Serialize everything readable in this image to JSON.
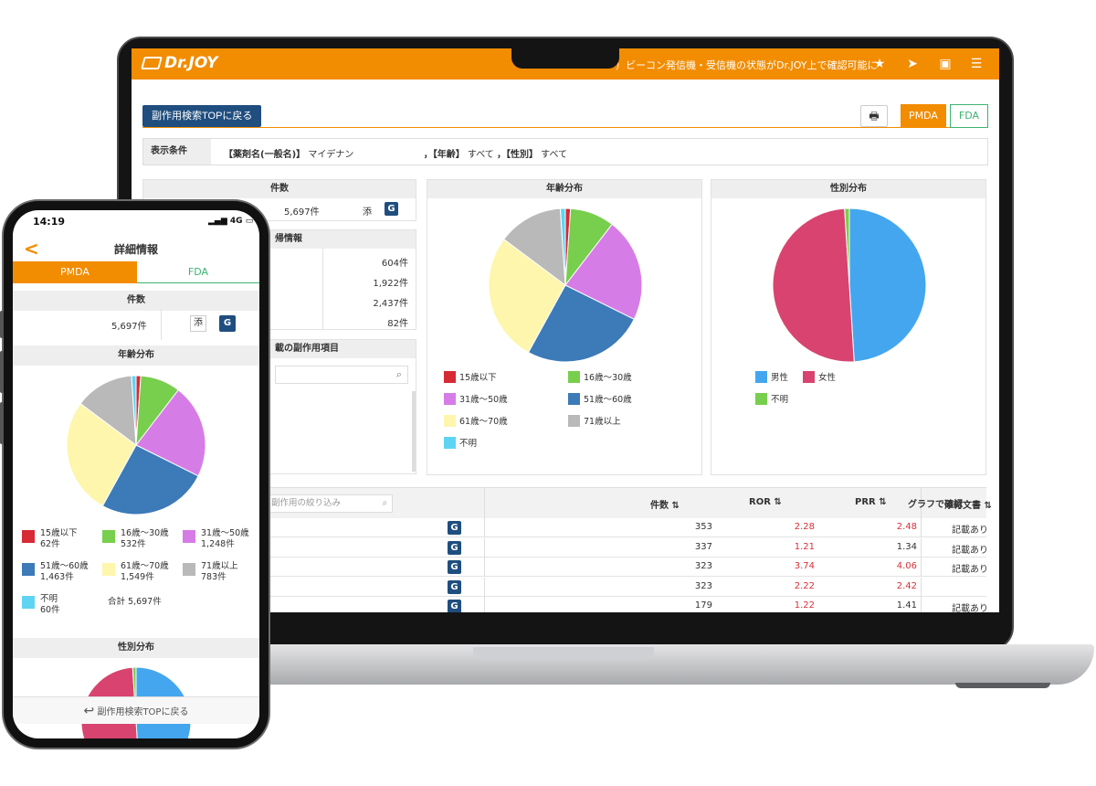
{
  "app": {
    "logo": "Dr.JOY",
    "ticker": "）ビーコン発信機・受信機の状態がDr.JOY上で確認可能に",
    "icons": [
      "star-icon",
      "send-icon",
      "play-icon",
      "menu-icon"
    ]
  },
  "toolbar": {
    "back_label": "副作用検索TOPに戻る",
    "print_icon": "🖶",
    "pmda": "PMDA",
    "fda": "FDA"
  },
  "condition": {
    "label": "表示条件",
    "drug_key": "【薬剤名(一般名)】",
    "drug_value": "マイデナン",
    "age_key": "，【年齢】",
    "age_value": "すべて",
    "sex_key": "，【性別】",
    "sex_value": "すべて"
  },
  "count_panel": {
    "title": "件数",
    "value": "5,697件",
    "attach": "添",
    "g": "G"
  },
  "report_panel": {
    "title": "帰情報",
    "rows": [
      "604件",
      "1,922件",
      "2,437件",
      "82件"
    ]
  },
  "side_panel": {
    "title": "載の副作用項目"
  },
  "age_chart": {
    "title": "年齢分布",
    "legend": [
      "15歳以下",
      "16歳～30歳",
      "31歳～50歳",
      "51歳～60歳",
      "61歳～70歳",
      "71歳以上",
      "不明"
    ],
    "colors": [
      "#d62a35",
      "#77cf4d",
      "#d67ce6",
      "#3c7ab8",
      "#fdf6ac",
      "#b9b9b9",
      "#5fd4f2"
    ],
    "counts": [
      "62件",
      "532件",
      "1,248件",
      "1,463件",
      "1,549件",
      "783件",
      "60件"
    ],
    "total": "合計 5,697件"
  },
  "sex_chart": {
    "title": "性別分布",
    "legend": [
      "男性",
      "女性",
      "不明"
    ],
    "colors": [
      "#44a6ee",
      "#d8446f",
      "#77cf4d"
    ]
  },
  "chart_data": [
    {
      "type": "pie",
      "title": "年齢分布",
      "categories": [
        "15歳以下",
        "16歳～30歳",
        "31歳～50歳",
        "51歳～60歳",
        "61歳～70歳",
        "71歳以上",
        "不明"
      ],
      "values": [
        62,
        532,
        1248,
        1463,
        1549,
        783,
        60
      ]
    },
    {
      "type": "pie",
      "title": "性別分布",
      "categories": [
        "男性",
        "女性",
        "不明"
      ],
      "values": [
        49,
        50,
        1
      ]
    }
  ],
  "table": {
    "filter_placeholder": "副作用の絞り込み",
    "headers": [
      "件数 ⇅",
      "ROR ⇅",
      "PRR ⇅",
      "添付文書 ⇅",
      "グラフで確認"
    ],
    "rows": [
      {
        "count": "353",
        "ror": "2.28",
        "ror_red": true,
        "prr": "2.48",
        "prr_red": true,
        "doc": "記載あり"
      },
      {
        "count": "337",
        "ror": "1.21",
        "ror_red": true,
        "prr": "1.34",
        "prr_red": false,
        "doc": "記載あり"
      },
      {
        "count": "323",
        "ror": "3.74",
        "ror_red": true,
        "prr": "4.06",
        "prr_red": true,
        "doc": "記載あり"
      },
      {
        "count": "323",
        "ror": "2.22",
        "ror_red": true,
        "prr": "2.42",
        "prr_red": true,
        "doc": ""
      },
      {
        "count": "179",
        "ror": "1.22",
        "ror_red": true,
        "prr": "1.41",
        "prr_red": false,
        "doc": "記載あり"
      }
    ]
  },
  "phone": {
    "time": "14:19",
    "signal": "4G",
    "title": "詳細情報",
    "back": "<",
    "pmda": "PMDA",
    "fda": "FDA",
    "count_title": "件数",
    "count_value": "5,697件",
    "attach": "添",
    "g": "G",
    "age_title": "年齢分布",
    "sex_title": "性別分布",
    "footer": "副作用検索TOPに戻る"
  }
}
